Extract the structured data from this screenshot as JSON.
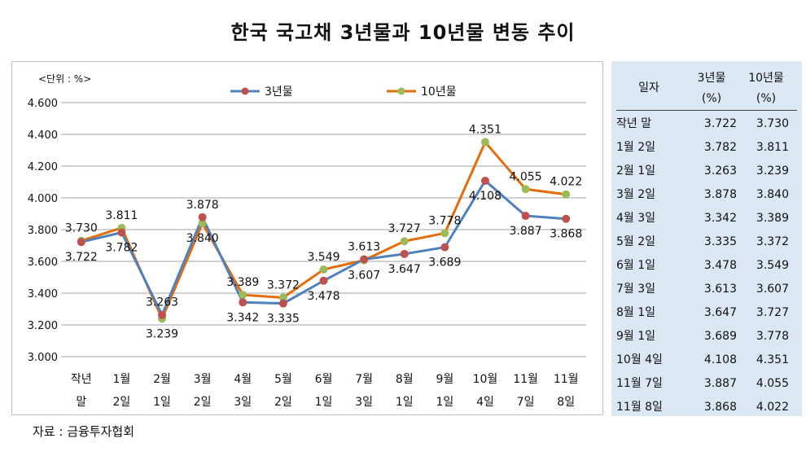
{
  "title": "한국 국고채 3년물과 10년물 변동 추이",
  "unit_note": "<단위 : %>",
  "source": "자료 : 금융투자협회",
  "colors": {
    "series_3y": "#4f81bd",
    "marker_3y": "#c0504d",
    "series_10y": "#e46c0a",
    "marker_10y": "#9bbb59",
    "grid": "#a6a6a6",
    "table_bg": "#dbe7f2"
  },
  "table": {
    "header": {
      "date": "일자",
      "col_3y": "3년물",
      "col_3y_unit": "(%)",
      "col_10y": "10년물",
      "col_10y_unit": "(%)"
    },
    "rows": [
      {
        "date": "작년 말",
        "v3": "3.722",
        "v10": "3.730"
      },
      {
        "date": "1월 2일",
        "v3": "3.782",
        "v10": "3.811"
      },
      {
        "date": "2월 1일",
        "v3": "3.263",
        "v10": "3.239"
      },
      {
        "date": "3월 2일",
        "v3": "3.878",
        "v10": "3.840"
      },
      {
        "date": "4월 3일",
        "v3": "3.342",
        "v10": "3.389"
      },
      {
        "date": "5월 2일",
        "v3": "3.335",
        "v10": "3.372"
      },
      {
        "date": "6월 1일",
        "v3": "3.478",
        "v10": "3.549"
      },
      {
        "date": "7월 3일",
        "v3": "3.613",
        "v10": "3.607"
      },
      {
        "date": "8월 1일",
        "v3": "3.647",
        "v10": "3.727"
      },
      {
        "date": "9월 1일",
        "v3": "3.689",
        "v10": "3.778"
      },
      {
        "date": "10월 4일",
        "v3": "4.108",
        "v10": "4.351"
      },
      {
        "date": "11월 7일",
        "v3": "3.887",
        "v10": "4.055"
      },
      {
        "date": "11월 8일",
        "v3": "3.868",
        "v10": "4.022"
      }
    ]
  },
  "chart_data": {
    "type": "line",
    "title": "한국 국고채 3년물과 10년물 변동 추이",
    "categories": [
      [
        "작년",
        "말"
      ],
      [
        "1월",
        "2일"
      ],
      [
        "2월",
        "1일"
      ],
      [
        "3월",
        "2일"
      ],
      [
        "4월",
        "3일"
      ],
      [
        "5월",
        "2일"
      ],
      [
        "6월",
        "1일"
      ],
      [
        "7월",
        "3일"
      ],
      [
        "8월",
        "1일"
      ],
      [
        "9월",
        "1일"
      ],
      [
        "10월",
        "4일"
      ],
      [
        "11월",
        "7일"
      ],
      [
        "11월",
        "8일"
      ]
    ],
    "series": [
      {
        "name": "3년물",
        "values": [
          3.722,
          3.782,
          3.263,
          3.878,
          3.342,
          3.335,
          3.478,
          3.613,
          3.647,
          3.689,
          4.108,
          3.887,
          3.868
        ]
      },
      {
        "name": "10년물",
        "values": [
          3.73,
          3.811,
          3.239,
          3.84,
          3.389,
          3.372,
          3.549,
          3.607,
          3.727,
          3.778,
          4.351,
          4.055,
          4.022
        ]
      }
    ],
    "data_labels": [
      [
        "3.722",
        "3.782",
        "3.263",
        "3.878",
        "3.342",
        "3.335",
        "3.478",
        "3.613",
        "3.647",
        "3.689",
        "4.108",
        "3.887",
        "3.868"
      ],
      [
        "3.730",
        "3.811",
        "3.239",
        "3.840",
        "3.389",
        "3.372",
        "3.549",
        "3.607",
        "3.727",
        "3.778",
        "4.351",
        "4.055",
        "4.022"
      ]
    ],
    "y_ticks": [
      "3.000",
      "3.200",
      "3.400",
      "3.600",
      "3.800",
      "4.000",
      "4.200",
      "4.400",
      "4.600"
    ],
    "ylim": [
      3.0,
      4.6
    ],
    "grid": true,
    "legend_position": "top"
  }
}
